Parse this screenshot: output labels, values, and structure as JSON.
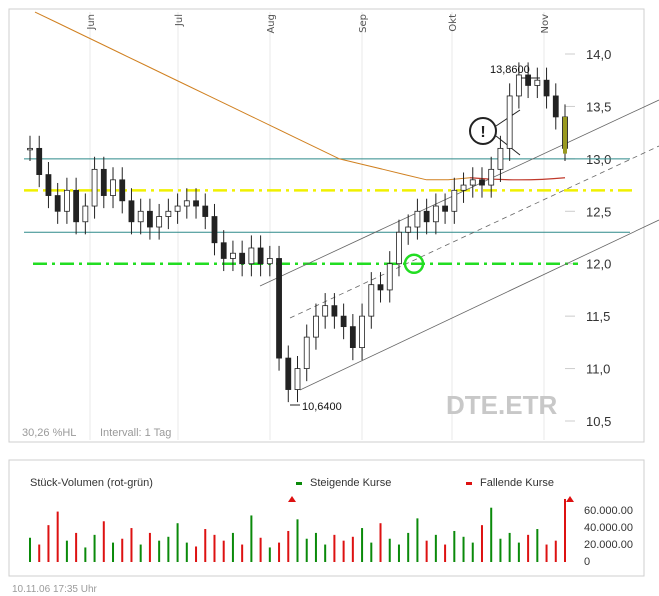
{
  "chart_data": [
    {
      "type": "candlestick",
      "symbol": "DTE.ETR",
      "x_months": [
        "Jun",
        "Jul",
        "Aug",
        "Sep",
        "Okt",
        "Nov"
      ],
      "y_ticks": [
        "14,0",
        "13,5",
        "13,0",
        "12,5",
        "12,0",
        "11,5",
        "11,0",
        "10,5"
      ],
      "ylim": [
        10.5,
        14.0
      ],
      "high_label": "13,8600",
      "low_label": "10,6400",
      "info_left": "30,26 %HL",
      "info_interval": "Intervall: 1 Tag",
      "support_levels": [
        13.0,
        12.3
      ],
      "signal_levels": [
        12.7,
        12.0
      ],
      "colors": {
        "price": "#222222",
        "ma": "#d08020",
        "support": "#2e8a8a",
        "yellow": "#f0f000",
        "green": "#22dd22",
        "channel": "#666666",
        "rising": "#0a8a0a",
        "falling": "#dd1111"
      },
      "close_series": [
        13.1,
        12.85,
        12.65,
        12.5,
        12.7,
        12.4,
        12.55,
        12.9,
        12.65,
        12.8,
        12.6,
        12.4,
        12.5,
        12.35,
        12.45,
        12.5,
        12.55,
        12.6,
        12.55,
        12.45,
        12.2,
        12.05,
        12.1,
        12.0,
        12.15,
        12.0,
        12.05,
        11.1,
        10.8,
        11.0,
        11.3,
        11.5,
        11.6,
        11.5,
        11.4,
        11.2,
        11.5,
        11.8,
        11.75,
        12.0,
        12.3,
        12.35,
        12.5,
        12.4,
        12.55,
        12.5,
        12.7,
        12.75,
        12.8,
        12.75,
        12.9,
        13.1,
        13.6,
        13.8,
        13.7,
        13.75,
        13.6,
        13.4,
        13.1
      ],
      "ma_series": [
        14.4,
        14.3,
        14.2,
        14.1,
        14.0,
        13.9,
        13.8,
        13.7,
        13.6,
        13.5,
        13.4,
        13.3,
        13.2,
        13.1,
        13.0,
        12.95,
        12.9,
        12.85,
        12.8,
        12.8,
        12.82
      ],
      "legend": {
        "title": "Stück-Volumen (rot-grün)",
        "rising": "Steigende Kurse",
        "falling": "Fallende Kurse"
      },
      "volume_ticks": [
        "60.000.00",
        "40.000.00",
        "20.000.00",
        "0"
      ],
      "volume_values": [
        25,
        18,
        38,
        52,
        22,
        30,
        15,
        28,
        42,
        20,
        24,
        35,
        18,
        30,
        22,
        26,
        40,
        20,
        16,
        34,
        28,
        22,
        30,
        18,
        48,
        25,
        15,
        20,
        32,
        44,
        24,
        30,
        18,
        28,
        22,
        26,
        35,
        20,
        40,
        24,
        18,
        30,
        45,
        22,
        28,
        18,
        32,
        26,
        20,
        38,
        56,
        24,
        30,
        20,
        28,
        34,
        18,
        22,
        65
      ]
    }
  ],
  "footer": {
    "date_time": "10.11.06   17:35 Uhr"
  }
}
